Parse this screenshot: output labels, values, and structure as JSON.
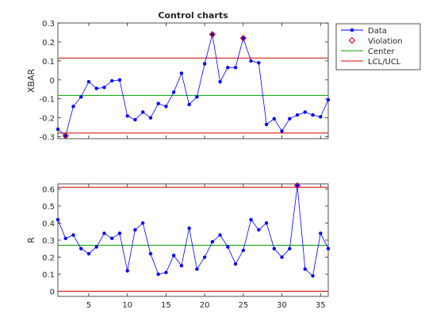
{
  "chart_data": [
    {
      "type": "line",
      "title": "Control charts",
      "ylabel": "XBAR",
      "xlabel": "",
      "xlim": [
        1,
        36
      ],
      "ylim": [
        -0.31,
        0.3
      ],
      "xticks": [
        5,
        10,
        15,
        20,
        25,
        30,
        35
      ],
      "xticks_labeled": false,
      "yticks": [
        -0.3,
        -0.2,
        -0.1,
        0,
        0.1,
        0.2,
        0.3
      ],
      "ytick_labels": [
        "-0.3",
        "-0.2",
        "-0.1",
        "0",
        "0.1",
        "0.2",
        "0.3"
      ],
      "x": [
        1,
        2,
        3,
        4,
        5,
        6,
        7,
        8,
        9,
        10,
        11,
        12,
        13,
        14,
        15,
        16,
        17,
        18,
        19,
        20,
        21,
        22,
        23,
        24,
        25,
        26,
        27,
        28,
        29,
        30,
        31,
        32,
        33,
        34,
        35,
        36
      ],
      "series": [
        {
          "name": "Data",
          "color": "#0000ff",
          "values": [
            -0.26,
            -0.295,
            -0.14,
            -0.09,
            -0.01,
            -0.045,
            -0.04,
            -0.005,
            0.0,
            -0.19,
            -0.21,
            -0.17,
            -0.2,
            -0.125,
            -0.14,
            -0.065,
            0.035,
            -0.13,
            -0.09,
            0.085,
            0.24,
            -0.01,
            0.065,
            0.065,
            0.22,
            0.1,
            0.09,
            -0.235,
            -0.205,
            -0.27,
            -0.205,
            -0.185,
            -0.17,
            -0.185,
            -0.195,
            -0.105
          ]
        }
      ],
      "violations": {
        "name": "Violation",
        "color": "#cc0000",
        "x": [
          2,
          21,
          25
        ],
        "y": [
          -0.295,
          0.24,
          0.22
        ]
      },
      "center": {
        "name": "Center",
        "color": "#00a000",
        "value": -0.082
      },
      "limits": {
        "name": "LCL/UCL",
        "color": "#cc0000",
        "lcl": -0.28,
        "ucl": 0.115
      },
      "grid": false,
      "legend_position": "outside-top-right"
    },
    {
      "type": "line",
      "title": "",
      "ylabel": "R",
      "xlabel": "",
      "xlim": [
        1,
        36
      ],
      "ylim": [
        -0.03,
        0.63
      ],
      "xticks": [
        5,
        10,
        15,
        20,
        25,
        30,
        35
      ],
      "xtick_labels": [
        "5",
        "10",
        "15",
        "20",
        "25",
        "30",
        "35"
      ],
      "yticks": [
        0,
        0.1,
        0.2,
        0.3,
        0.4,
        0.5,
        0.6
      ],
      "ytick_labels": [
        "0",
        "0.1",
        "0.2",
        "0.3",
        "0.4",
        "0.5",
        "0.6"
      ],
      "x": [
        1,
        2,
        3,
        4,
        5,
        6,
        7,
        8,
        9,
        10,
        11,
        12,
        13,
        14,
        15,
        16,
        17,
        18,
        19,
        20,
        21,
        22,
        23,
        24,
        25,
        26,
        27,
        28,
        29,
        30,
        31,
        32,
        33,
        34,
        35,
        36
      ],
      "series": [
        {
          "name": "Data",
          "color": "#0000ff",
          "values": [
            0.42,
            0.31,
            0.33,
            0.25,
            0.22,
            0.26,
            0.34,
            0.31,
            0.34,
            0.12,
            0.36,
            0.4,
            0.22,
            0.1,
            0.11,
            0.21,
            0.15,
            0.37,
            0.13,
            0.2,
            0.29,
            0.33,
            0.26,
            0.16,
            0.24,
            0.42,
            0.36,
            0.4,
            0.25,
            0.2,
            0.25,
            0.62,
            0.13,
            0.09,
            0.34,
            0.25
          ]
        }
      ],
      "violations": {
        "name": "Violation",
        "color": "#cc0000",
        "x": [
          32
        ],
        "y": [
          0.62
        ]
      },
      "center": {
        "name": "Center",
        "color": "#00a000",
        "value": 0.27
      },
      "limits": {
        "name": "LCL/UCL",
        "color": "#cc0000",
        "lcl": 0.0,
        "ucl": 0.61
      },
      "grid": false
    }
  ],
  "legend": {
    "entries": [
      {
        "label": "Data",
        "kind": "line-marker",
        "color": "#0000ff"
      },
      {
        "label": "Violation",
        "kind": "diamond",
        "color": "#cc0000"
      },
      {
        "label": "Center",
        "kind": "line",
        "color": "#00a000"
      },
      {
        "label": "LCL/UCL",
        "kind": "line",
        "color": "#cc0000"
      }
    ]
  }
}
